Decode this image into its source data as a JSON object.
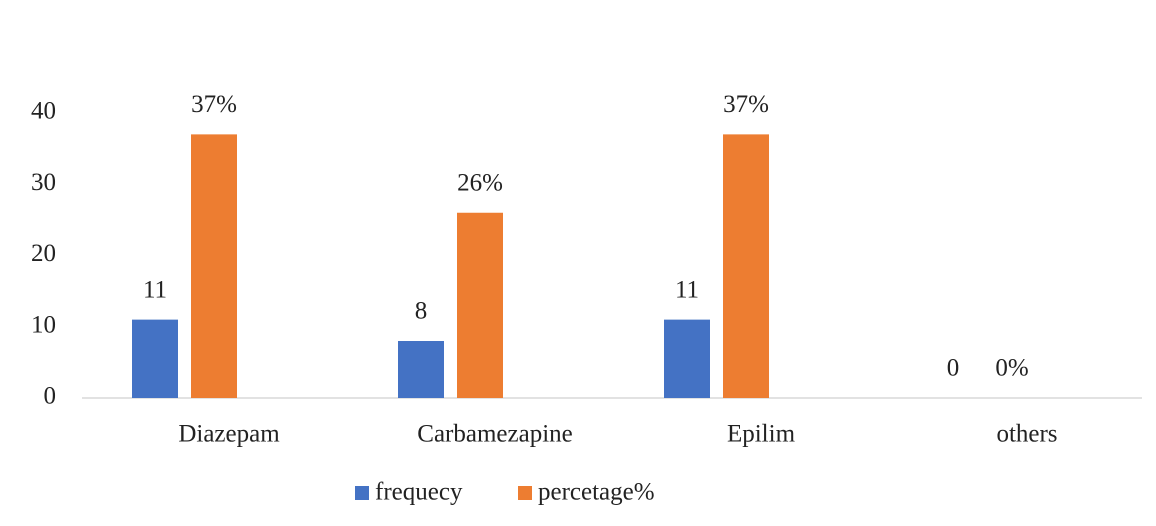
{
  "chart_data": {
    "type": "bar",
    "categories": [
      "Diazepam",
      "Carbamezapine",
      "Epilim",
      "others"
    ],
    "series": [
      {
        "name": "frequecy",
        "color": "#4472c4",
        "values": [
          11,
          8,
          11,
          0
        ]
      },
      {
        "name": "percetage%",
        "color": "#ed7d31",
        "values": [
          37,
          26,
          37,
          0
        ],
        "value_labels": [
          "37%",
          "26%",
          "37%",
          "0%"
        ]
      }
    ],
    "ylim": [
      0,
      40
    ],
    "yticks": [
      0,
      10,
      20,
      30,
      40
    ],
    "grid": false,
    "legend": "bottom"
  }
}
